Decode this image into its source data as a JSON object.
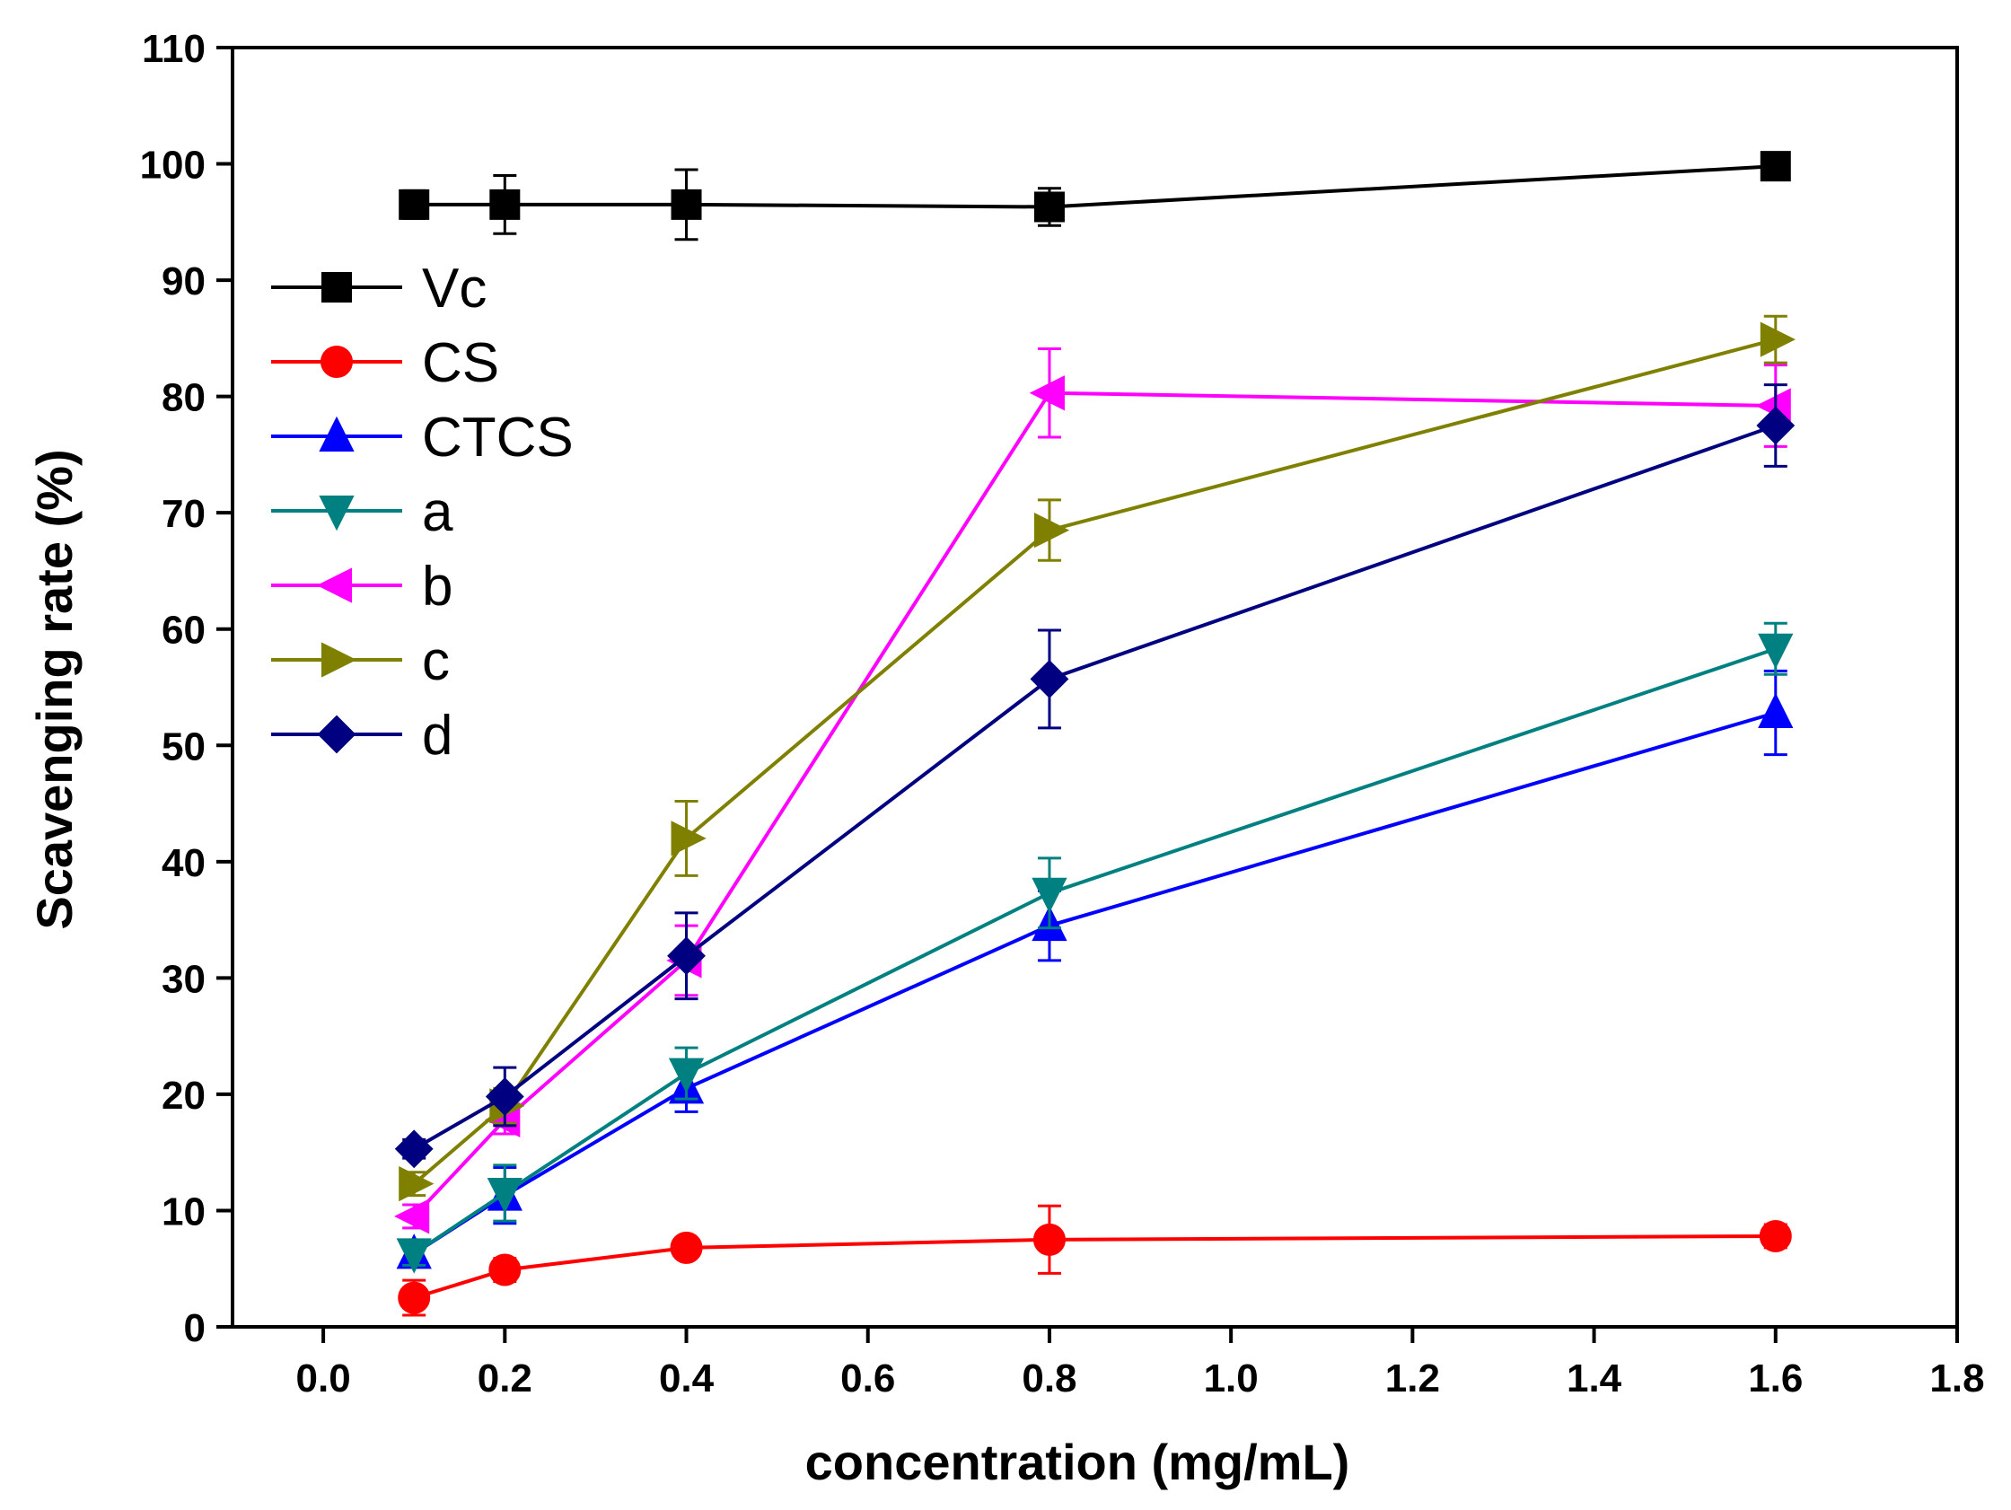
{
  "chart_data": {
    "type": "line",
    "title": "",
    "xlabel": "concentration (mg/mL)",
    "ylabel": "Scavenging rate (%)",
    "xlim": [
      -0.1,
      1.8
    ],
    "ylim": [
      0,
      110
    ],
    "xticks": [
      0.0,
      0.2,
      0.4,
      0.6,
      0.8,
      1.0,
      1.2,
      1.4,
      1.6,
      1.8
    ],
    "xtick_labels": [
      "0.0",
      "0.2",
      "0.4",
      "0.6",
      "0.8",
      "1.0",
      "1.2",
      "1.4",
      "1.6",
      "1.8"
    ],
    "yticks": [
      0,
      10,
      20,
      30,
      40,
      50,
      60,
      70,
      80,
      90,
      100,
      110
    ],
    "ytick_labels": [
      "0",
      "10",
      "20",
      "30",
      "40",
      "50",
      "60",
      "70",
      "80",
      "90",
      "100",
      "110"
    ],
    "grid": false,
    "legend_position": "top-left",
    "x": [
      0.1,
      0.2,
      0.4,
      0.8,
      1.6
    ],
    "series": [
      {
        "name": "Vc",
        "color": "#000000",
        "marker": "square",
        "values": [
          96.5,
          96.5,
          96.5,
          96.3,
          99.8
        ],
        "errors": [
          1.2,
          2.5,
          3.0,
          1.6,
          0.5
        ]
      },
      {
        "name": "CS",
        "color": "#ff0000",
        "marker": "circle",
        "values": [
          2.5,
          4.9,
          6.8,
          7.5,
          7.8
        ],
        "errors": [
          1.5,
          1.0,
          0.6,
          2.9,
          1.0
        ]
      },
      {
        "name": "CTCS",
        "color": "#0000ff",
        "marker": "triangle-up",
        "values": [
          6.3,
          11.3,
          20.5,
          34.5,
          52.8
        ],
        "errors": [
          1.0,
          2.4,
          2.0,
          3.0,
          3.6
        ]
      },
      {
        "name": "a",
        "color": "#008080",
        "marker": "triangle-down",
        "values": [
          6.3,
          11.5,
          21.8,
          37.3,
          58.3
        ],
        "errors": [
          1.0,
          2.4,
          2.2,
          3.0,
          2.2
        ]
      },
      {
        "name": "b",
        "color": "#ff00ff",
        "marker": "triangle-left",
        "values": [
          9.5,
          17.8,
          31.5,
          80.3,
          79.2
        ],
        "errors": [
          1.0,
          1.2,
          3.0,
          3.8,
          3.5
        ]
      },
      {
        "name": "c",
        "color": "#808000",
        "marker": "triangle-right",
        "values": [
          12.3,
          19.0,
          42.0,
          68.5,
          84.9
        ],
        "errors": [
          1.0,
          1.5,
          3.2,
          2.6,
          2.0
        ]
      },
      {
        "name": "d",
        "color": "#000080",
        "marker": "diamond",
        "values": [
          15.3,
          19.8,
          31.9,
          55.7,
          77.5
        ],
        "errors": [
          0.8,
          2.5,
          3.7,
          4.2,
          3.5
        ]
      }
    ]
  }
}
